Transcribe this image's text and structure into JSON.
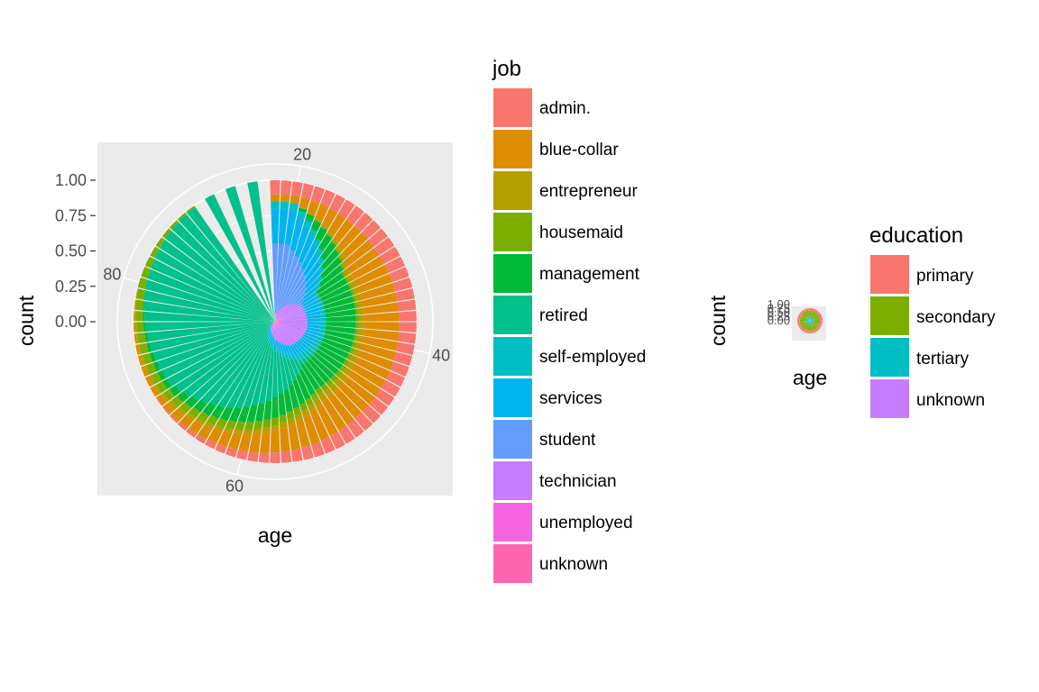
{
  "colors": {
    "panel_bg": "#EBEBEB",
    "grid": "#FFFFFF",
    "tick_text": "#4D4D4D"
  },
  "chart_data": [
    {
      "type": "bar",
      "coord": "polar",
      "stacking": "fill",
      "xlabel": "age",
      "ylabel": "count",
      "x_ticks": [
        "20",
        "40",
        "60",
        "80"
      ],
      "y_ticks": [
        "1.00",
        "0.75",
        "0.50",
        "0.25",
        "0.00"
      ],
      "xlim": [
        18,
        95
      ],
      "ylim": [
        0,
        1
      ],
      "legend": {
        "title": "job",
        "position": "right",
        "entries": [
          {
            "label": "admin.",
            "color": "#F8766D"
          },
          {
            "label": "blue-collar",
            "color": "#DE8C00"
          },
          {
            "label": "entrepreneur",
            "color": "#B79F00"
          },
          {
            "label": "housemaid",
            "color": "#7CAE00"
          },
          {
            "label": "management",
            "color": "#00BA38"
          },
          {
            "label": "retired",
            "color": "#00C08B"
          },
          {
            "label": "self-employed",
            "color": "#00BFC4"
          },
          {
            "label": "services",
            "color": "#00B4F0"
          },
          {
            "label": "student",
            "color": "#619CFF"
          },
          {
            "label": "technician",
            "color": "#C77CFF"
          },
          {
            "label": "unemployed",
            "color": "#F564E3"
          },
          {
            "label": "unknown",
            "color": "#FF64B0"
          }
        ]
      },
      "series_profile": [
        {
          "age": 20,
          "admin.": 0.1,
          "blue-collar": 0.05,
          "entrepreneur": 0.0,
          "housemaid": 0.0,
          "management": 0.0,
          "retired": 0.0,
          "self-employed": 0.05,
          "services": 0.25,
          "student": 0.5,
          "technician": 0.05,
          "unemployed": 0.0,
          "unknown": 0.0
        },
        {
          "age": 30,
          "admin.": 0.13,
          "blue-collar": 0.24,
          "entrepreneur": 0.03,
          "housemaid": 0.02,
          "management": 0.22,
          "retired": 0.0,
          "self-employed": 0.03,
          "services": 0.1,
          "student": 0.02,
          "technician": 0.17,
          "unemployed": 0.03,
          "unknown": 0.01
        },
        {
          "age": 40,
          "admin.": 0.12,
          "blue-collar": 0.25,
          "entrepreneur": 0.04,
          "housemaid": 0.02,
          "management": 0.21,
          "retired": 0.0,
          "self-employed": 0.04,
          "services": 0.09,
          "student": 0.0,
          "technician": 0.18,
          "unemployed": 0.03,
          "unknown": 0.02
        },
        {
          "age": 50,
          "admin.": 0.11,
          "blue-collar": 0.24,
          "entrepreneur": 0.05,
          "housemaid": 0.04,
          "management": 0.2,
          "retired": 0.04,
          "self-employed": 0.04,
          "services": 0.08,
          "student": 0.0,
          "technician": 0.15,
          "unemployed": 0.03,
          "unknown": 0.02
        },
        {
          "age": 60,
          "admin.": 0.06,
          "blue-collar": 0.12,
          "entrepreneur": 0.03,
          "housemaid": 0.06,
          "management": 0.12,
          "retired": 0.45,
          "self-employed": 0.03,
          "services": 0.04,
          "student": 0.0,
          "technician": 0.06,
          "unemployed": 0.02,
          "unknown": 0.01
        },
        {
          "age": 70,
          "admin.": 0.0,
          "blue-collar": 0.03,
          "entrepreneur": 0.02,
          "housemaid": 0.05,
          "management": 0.04,
          "retired": 0.85,
          "self-employed": 0.0,
          "services": 0.0,
          "student": 0.0,
          "technician": 0.01,
          "unemployed": 0.0,
          "unknown": 0.0
        },
        {
          "age": 80,
          "admin.": 0.0,
          "blue-collar": 0.0,
          "entrepreneur": 0.0,
          "housemaid": 0.05,
          "management": 0.0,
          "retired": 0.95,
          "self-employed": 0.0,
          "services": 0.0,
          "student": 0.0,
          "technician": 0.0,
          "unemployed": 0.0,
          "unknown": 0.0
        },
        {
          "age": 90,
          "admin.": 0.0,
          "blue-collar": 0.0,
          "entrepreneur": 0.0,
          "housemaid": 0.0,
          "management": 0.0,
          "retired": 1.0,
          "self-employed": 0.0,
          "services": 0.0,
          "student": 0.0,
          "technician": 0.0,
          "unemployed": 0.0,
          "unknown": 0.0
        }
      ]
    },
    {
      "type": "bar",
      "coord": "polar",
      "stacking": "fill",
      "xlabel": "age",
      "ylabel": "count",
      "y_ticks": [
        "1.00",
        "0.75",
        "0.50",
        "0.25",
        "0.00"
      ],
      "legend": {
        "title": "education",
        "position": "right",
        "entries": [
          {
            "label": "primary",
            "color": "#F8766D"
          },
          {
            "label": "secondary",
            "color": "#7CAE00"
          },
          {
            "label": "tertiary",
            "color": "#00BFC4"
          },
          {
            "label": "unknown",
            "color": "#C77CFF"
          }
        ]
      }
    }
  ]
}
